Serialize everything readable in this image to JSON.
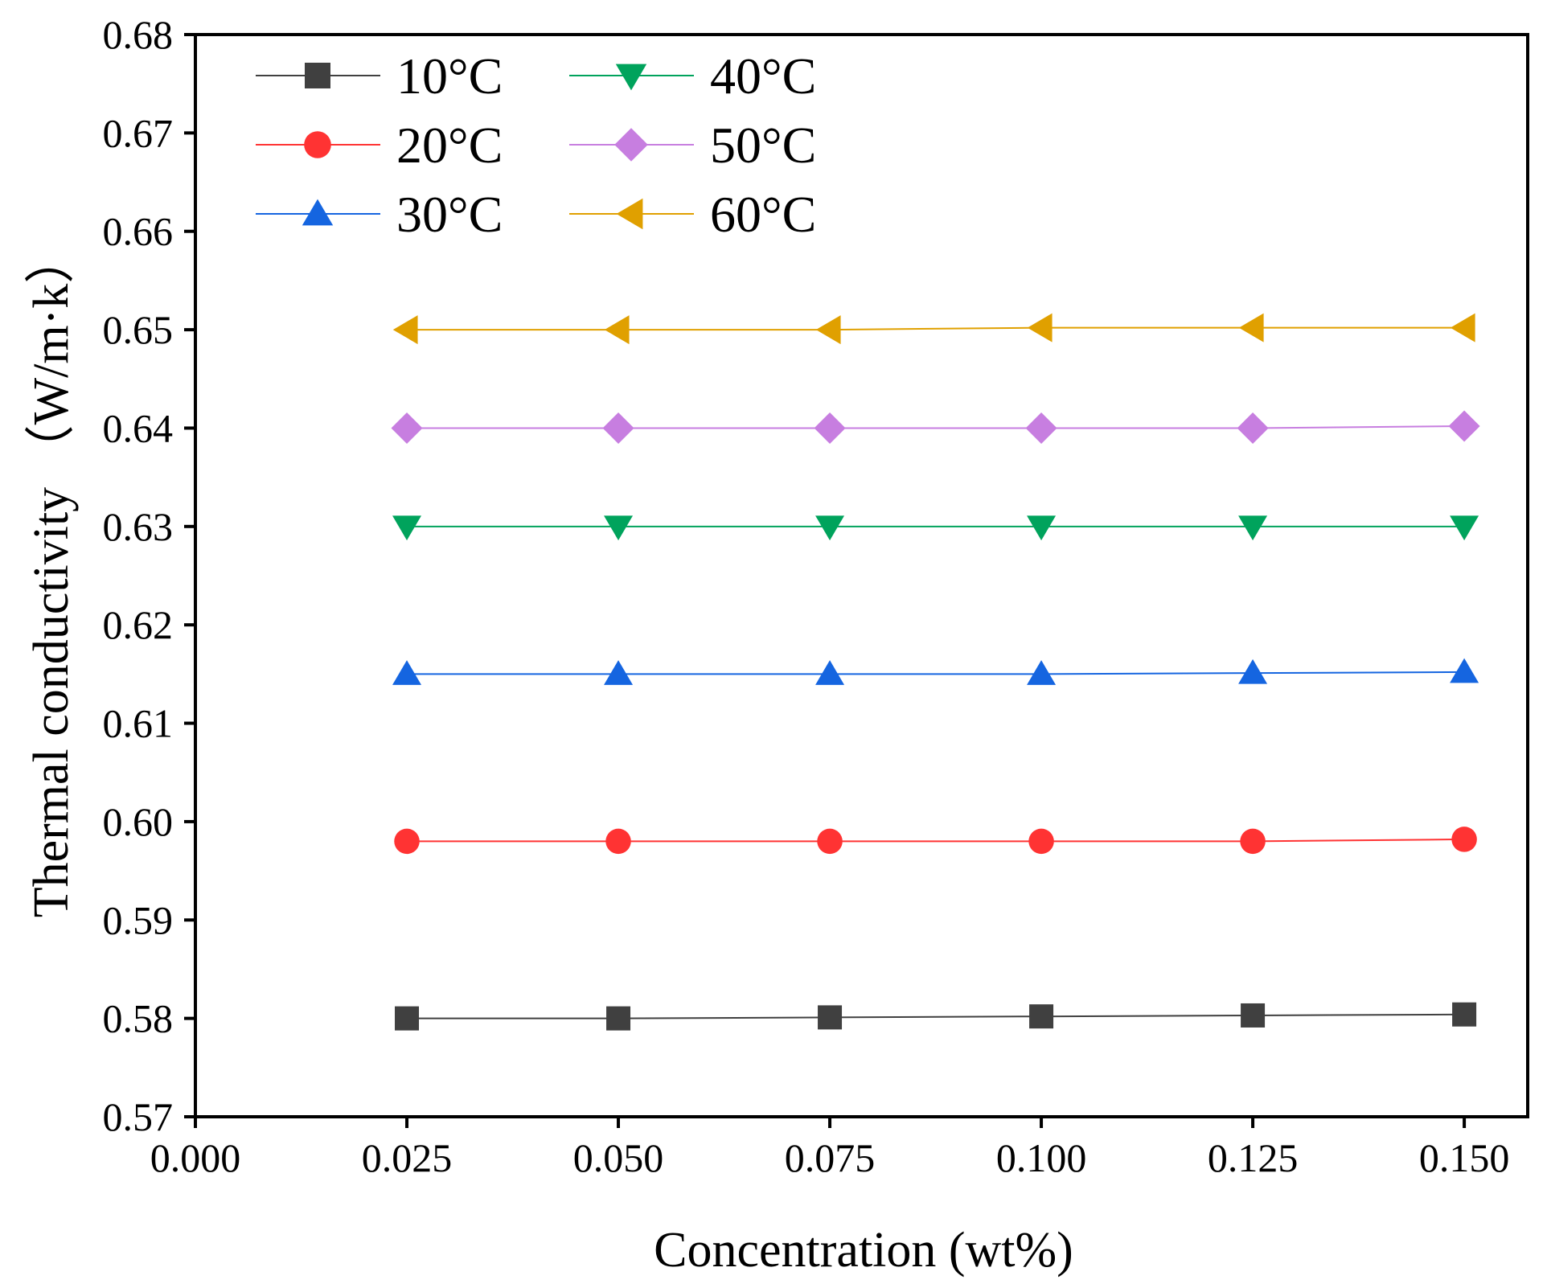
{
  "chart_data": {
    "type": "line",
    "xlabel": "Concentration  (wt%)",
    "ylabel": "Thermal conductivity  （W/m·k）",
    "xlim": [
      0,
      0.1575
    ],
    "ylim": [
      0.57,
      0.68
    ],
    "x_ticks": [
      "0.000",
      "0.025",
      "0.050",
      "0.075",
      "0.100",
      "0.125",
      "0.150"
    ],
    "y_ticks": [
      "0.57",
      "0.58",
      "0.59",
      "0.60",
      "0.61",
      "0.62",
      "0.63",
      "0.64",
      "0.65",
      "0.66",
      "0.67",
      "0.68"
    ],
    "grid": false,
    "legend_position": "top-left, two columns",
    "x": [
      0.025,
      0.05,
      0.075,
      0.1,
      0.125,
      0.15
    ],
    "series": [
      {
        "name": "10°C",
        "color": "#404040",
        "marker": "square",
        "values": [
          0.58,
          0.58,
          0.5801,
          0.5802,
          0.5803,
          0.5804
        ]
      },
      {
        "name": "20°C",
        "color": "#ff3333",
        "marker": "circle",
        "values": [
          0.598,
          0.598,
          0.598,
          0.598,
          0.598,
          0.5982
        ]
      },
      {
        "name": "30°C",
        "color": "#1565e0",
        "marker": "triangle-up",
        "values": [
          0.615,
          0.615,
          0.615,
          0.615,
          0.6151,
          0.6152
        ]
      },
      {
        "name": "40°C",
        "color": "#00a35c",
        "marker": "triangle-down",
        "values": [
          0.63,
          0.63,
          0.63,
          0.63,
          0.63,
          0.63
        ]
      },
      {
        "name": "50°C",
        "color": "#c77ee0",
        "marker": "diamond",
        "values": [
          0.64,
          0.64,
          0.64,
          0.64,
          0.64,
          0.6402
        ]
      },
      {
        "name": "60°C",
        "color": "#e0a000",
        "marker": "triangle-left",
        "values": [
          0.65,
          0.65,
          0.65,
          0.6502,
          0.6502,
          0.6502
        ]
      }
    ]
  }
}
